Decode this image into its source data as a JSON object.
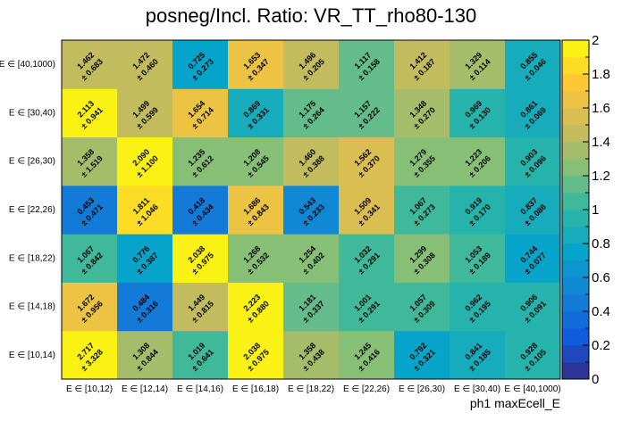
{
  "chart_data": {
    "type": "heatmap",
    "title": "posneg/Incl. Ratio: VR_TT_rho80-130",
    "xlabel": "ph1 maxEcell_E",
    "ylabel": "",
    "x_categories": [
      "E ∈ [10,12)",
      "E ∈ [12,14)",
      "E ∈ [14,16)",
      "E ∈ [16,18)",
      "E ∈ [18,22)",
      "E ∈ [22,26)",
      "E ∈ [26,30)",
      "E ∈ [30,40)",
      "E ∈ [40,1000)"
    ],
    "y_categories": [
      "E ∈ [10,14)",
      "E ∈ [14,18)",
      "E ∈ [18,22)",
      "E ∈ [22,26)",
      "E ∈ [26,30)",
      "E ∈ [30,40)",
      "E ∈ [40,1000)"
    ],
    "values": [
      [
        2.717,
        1.308,
        1.019,
        2.038,
        1.358,
        1.245,
        0.792,
        0.841,
        0.928
      ],
      [
        1.672,
        0.484,
        1.449,
        2.223,
        1.181,
        1.001,
        1.057,
        0.962,
        0.906
      ],
      [
        1.067,
        0.776,
        2.038,
        1.268,
        1.254,
        1.032,
        1.299,
        1.053,
        0.744
      ],
      [
        0.453,
        1.811,
        0.418,
        1.686,
        0.543,
        1.509,
        1.067,
        0.919,
        0.837
      ],
      [
        1.358,
        2.09,
        1.235,
        1.208,
        1.46,
        1.562,
        1.279,
        1.223,
        0.903
      ],
      [
        2.113,
        1.499,
        1.654,
        0.869,
        1.175,
        1.157,
        1.348,
        0.969,
        0.861
      ],
      [
        1.462,
        1.472,
        0.725,
        1.653,
        1.496,
        1.117,
        1.412,
        1.329,
        0.855
      ]
    ],
    "errors": [
      [
        3.328,
        0.844,
        0.641,
        0.975,
        0.438,
        0.416,
        0.321,
        0.185,
        0.105
      ],
      [
        0.956,
        0.316,
        0.815,
        0.88,
        0.337,
        0.291,
        0.309,
        0.195,
        0.091
      ],
      [
        0.842,
        0.387,
        0.975,
        0.532,
        0.402,
        0.291,
        0.308,
        0.189,
        0.077
      ],
      [
        0.471,
        1.046,
        0.434,
        0.843,
        0.233,
        0.341,
        0.273,
        0.17,
        0.088
      ],
      [
        1.519,
        1.1,
        0.612,
        0.545,
        0.388,
        0.37,
        0.355,
        0.206,
        0.096
      ],
      [
        0.941,
        0.599,
        0.714,
        0.331,
        0.264,
        0.222,
        0.27,
        0.13,
        0.069
      ],
      [
        0.683,
        0.46,
        0.273,
        0.347,
        0.205,
        0.158,
        0.187,
        0.114,
        0.046
      ]
    ],
    "z_range": [
      0,
      2
    ],
    "palette_ticks": [
      "0",
      "0.2",
      "0.4",
      "0.6",
      "0.8",
      "1",
      "1.2",
      "1.4",
      "1.6",
      "1.8",
      "2"
    ],
    "colormap": [
      "#352a87",
      "#0f5cdd",
      "#1481d6",
      "#06a4ca",
      "#2eb7a4",
      "#87bf77",
      "#d1bb59",
      "#fec832",
      "#f9fb0e"
    ],
    "legend": "right",
    "grid": false
  }
}
